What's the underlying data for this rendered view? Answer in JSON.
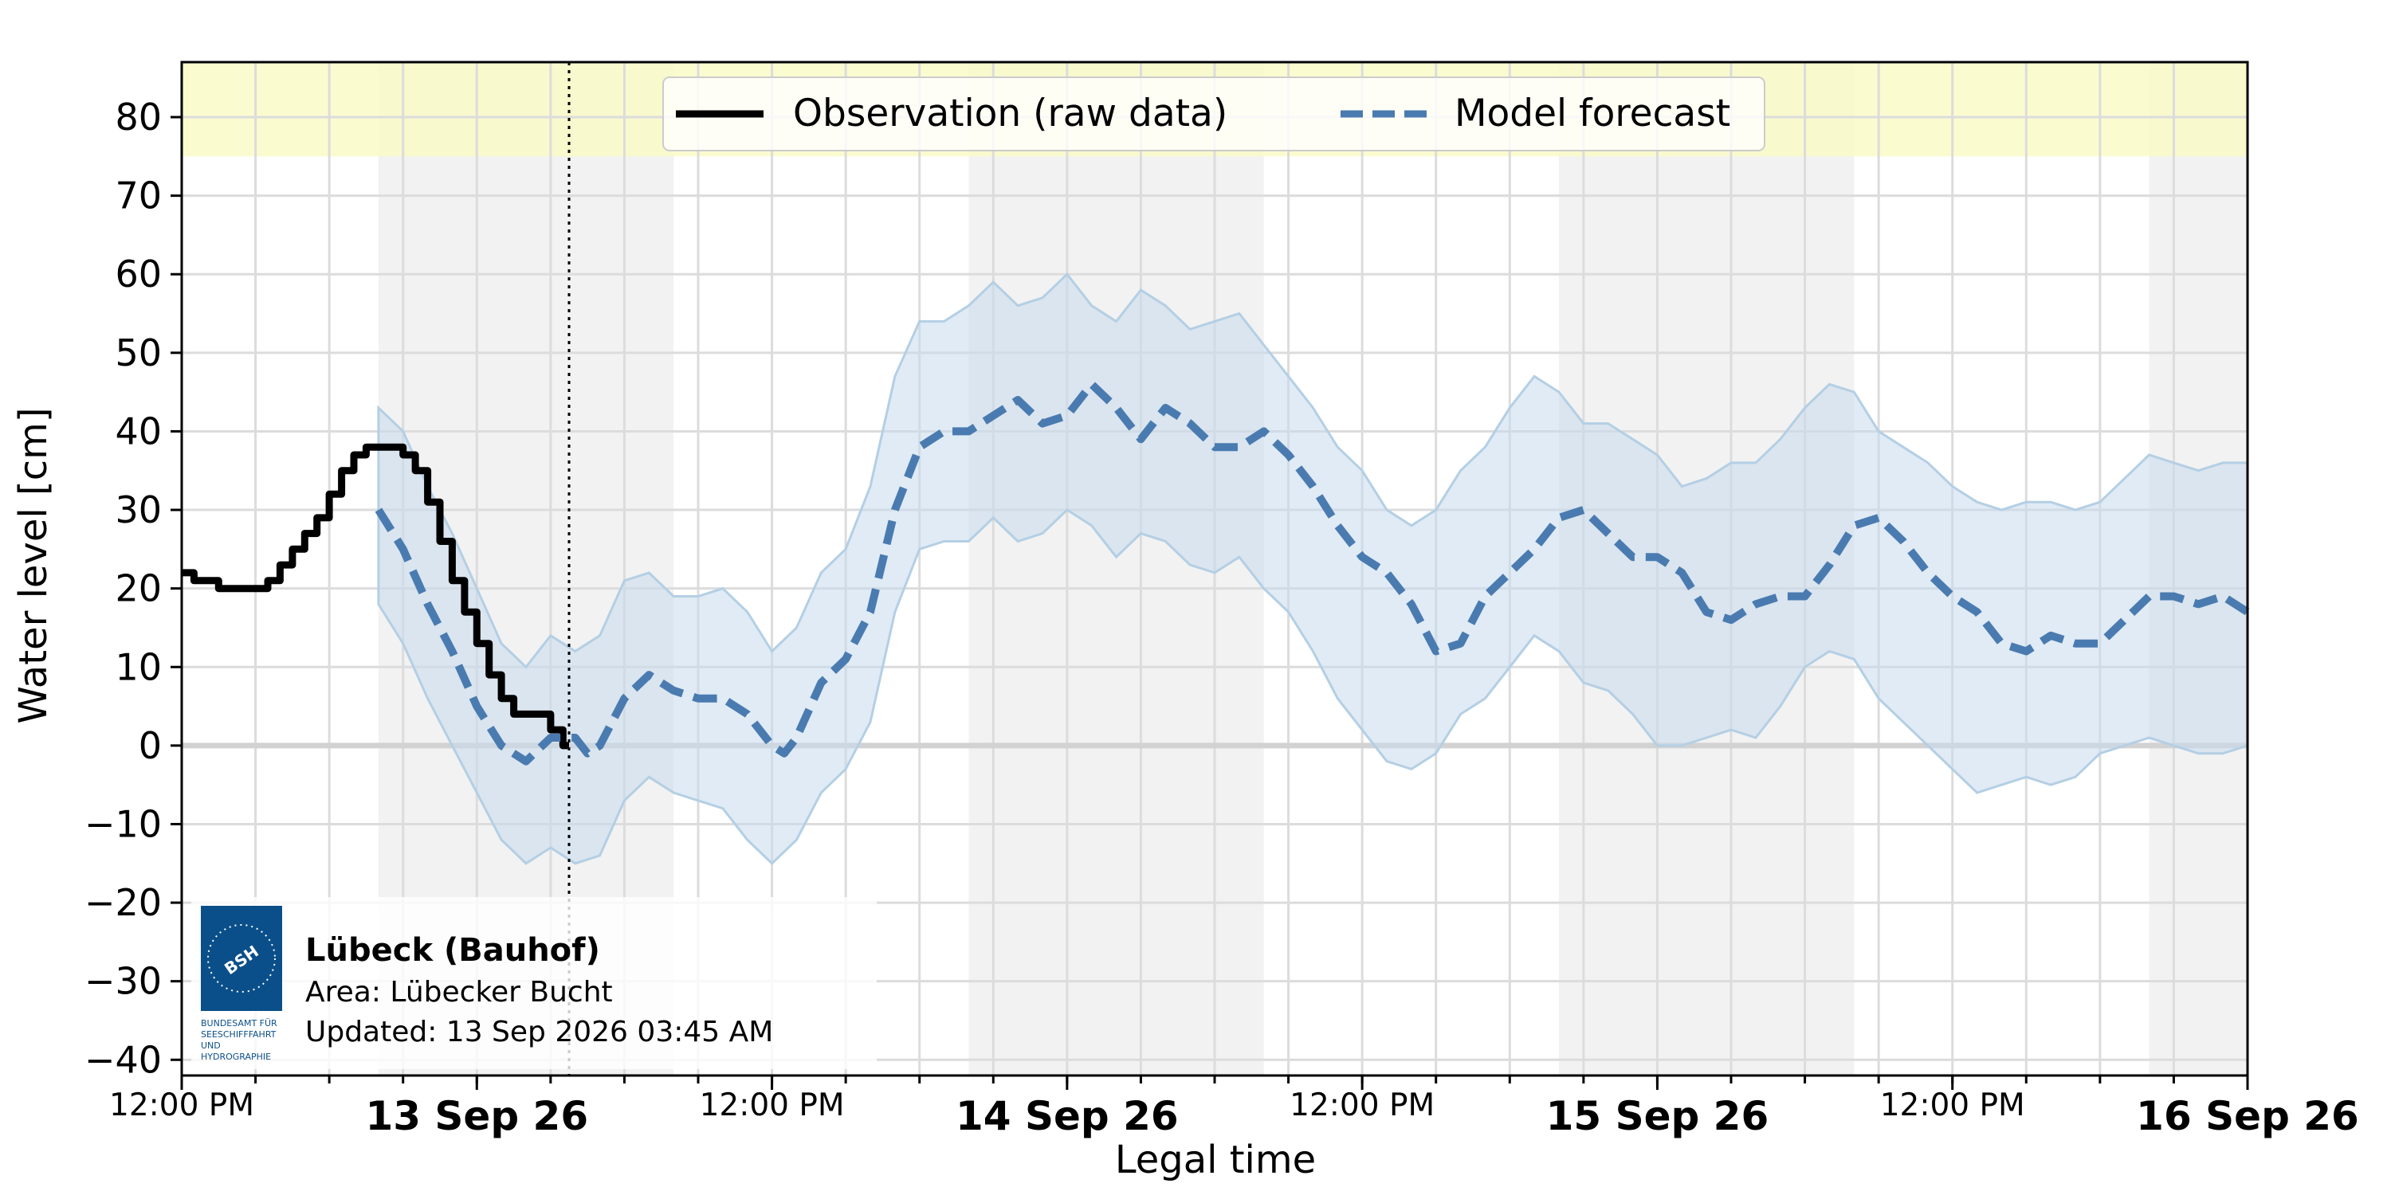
{
  "chart_data": {
    "type": "line",
    "xlabel": "Legal time",
    "ylabel": "Water level [cm]",
    "ylim": [
      -42,
      87
    ],
    "yticks": [
      80,
      70,
      60,
      50,
      40,
      30,
      20,
      10,
      0,
      -10,
      -20,
      -30,
      -40
    ],
    "ytick_labels": [
      "80",
      "70",
      "60",
      "50",
      "40",
      "30",
      "20",
      "10",
      "0",
      "−10",
      "−20",
      "−30",
      "−40"
    ],
    "x_unit": "hours since 12 Sep 2026 12:00 PM",
    "xlim": [
      0,
      84
    ],
    "xticks": [
      {
        "x": 0,
        "label": "12:00 PM",
        "major": false
      },
      {
        "x": 12,
        "label": "13 Sep 26",
        "major": true
      },
      {
        "x": 24,
        "label": "12:00 PM",
        "major": false
      },
      {
        "x": 36,
        "label": "14 Sep 26",
        "major": true
      },
      {
        "x": 48,
        "label": "12:00 PM",
        "major": false
      },
      {
        "x": 60,
        "label": "15 Sep 26",
        "major": true
      },
      {
        "x": 72,
        "label": "12:00 PM",
        "major": false
      },
      {
        "x": 84,
        "label": "16 Sep 26",
        "major": true
      }
    ],
    "night_bands": [
      [
        8,
        20
      ],
      [
        32,
        44
      ],
      [
        56,
        68
      ],
      [
        80,
        84
      ]
    ],
    "warning_band": {
      "from": 75,
      "to": 87,
      "color": "#fafac8"
    },
    "current_time": 15.75,
    "legend": {
      "position": "top-center",
      "entries": [
        {
          "name": "Observation (raw data)",
          "style": "solid",
          "color": "#000000"
        },
        {
          "name": "Model forecast",
          "style": "dashed",
          "color": "#4a7bb0"
        }
      ]
    },
    "series": [
      {
        "name": "Observation (raw data)",
        "color": "#000000",
        "style": "solid-step",
        "points": [
          [
            0,
            22
          ],
          [
            0.5,
            21
          ],
          [
            1,
            21
          ],
          [
            1.5,
            20
          ],
          [
            2.5,
            20
          ],
          [
            3,
            20
          ],
          [
            3.5,
            21
          ],
          [
            4,
            23
          ],
          [
            4.5,
            25
          ],
          [
            5,
            27
          ],
          [
            5.5,
            29
          ],
          [
            6,
            32
          ],
          [
            6.5,
            35
          ],
          [
            7,
            37
          ],
          [
            7.5,
            38
          ],
          [
            8,
            38
          ],
          [
            8.5,
            38
          ],
          [
            9,
            37
          ],
          [
            9.5,
            35
          ],
          [
            10,
            31
          ],
          [
            10.5,
            26
          ],
          [
            11,
            21
          ],
          [
            11.5,
            17
          ],
          [
            12,
            13
          ],
          [
            12.5,
            9
          ],
          [
            13,
            6
          ],
          [
            13.5,
            4
          ],
          [
            14,
            4
          ],
          [
            14.5,
            4
          ],
          [
            15,
            2
          ],
          [
            15.5,
            0
          ],
          [
            15.75,
            0
          ]
        ]
      },
      {
        "name": "Model forecast",
        "color": "#4a7bb0",
        "style": "dashed",
        "points": [
          [
            8,
            30
          ],
          [
            9,
            25
          ],
          [
            10,
            18
          ],
          [
            11,
            12
          ],
          [
            12,
            5
          ],
          [
            13,
            0
          ],
          [
            14,
            -2
          ],
          [
            15,
            1
          ],
          [
            16,
            1
          ],
          [
            16.5,
            -1
          ],
          [
            17,
            0
          ],
          [
            18,
            6
          ],
          [
            19,
            9
          ],
          [
            20,
            7
          ],
          [
            21,
            6
          ],
          [
            22,
            6
          ],
          [
            23,
            4
          ],
          [
            24,
            0
          ],
          [
            24.5,
            -1
          ],
          [
            25,
            1
          ],
          [
            26,
            8
          ],
          [
            27,
            11
          ],
          [
            28,
            17
          ],
          [
            29,
            30
          ],
          [
            30,
            38
          ],
          [
            31,
            40
          ],
          [
            32,
            40
          ],
          [
            33,
            42
          ],
          [
            34,
            44
          ],
          [
            35,
            41
          ],
          [
            36,
            42
          ],
          [
            37,
            46
          ],
          [
            38,
            43
          ],
          [
            39,
            39
          ],
          [
            40,
            43
          ],
          [
            41,
            41
          ],
          [
            42,
            38
          ],
          [
            43,
            38
          ],
          [
            44,
            40
          ],
          [
            45,
            37
          ],
          [
            46,
            33
          ],
          [
            47,
            28
          ],
          [
            48,
            24
          ],
          [
            49,
            22
          ],
          [
            50,
            18
          ],
          [
            51,
            12
          ],
          [
            52,
            13
          ],
          [
            53,
            19
          ],
          [
            54,
            22
          ],
          [
            55,
            25
          ],
          [
            56,
            29
          ],
          [
            57,
            30
          ],
          [
            58,
            27
          ],
          [
            59,
            24
          ],
          [
            60,
            24
          ],
          [
            61,
            22
          ],
          [
            62,
            17
          ],
          [
            63,
            16
          ],
          [
            64,
            18
          ],
          [
            65,
            19
          ],
          [
            66,
            19
          ],
          [
            67,
            23
          ],
          [
            68,
            28
          ],
          [
            69,
            29
          ],
          [
            70,
            26
          ],
          [
            71,
            22
          ],
          [
            72,
            19
          ],
          [
            73,
            17
          ],
          [
            74,
            13
          ],
          [
            75,
            12
          ],
          [
            76,
            14
          ],
          [
            77,
            13
          ],
          [
            78,
            13
          ],
          [
            79,
            16
          ],
          [
            80,
            19
          ],
          [
            81,
            19
          ],
          [
            82,
            18
          ],
          [
            83,
            19
          ],
          [
            84,
            17
          ]
        ]
      }
    ],
    "uncertainty_band": {
      "series": "Model forecast",
      "color": "#c6dbec",
      "upper": [
        [
          8,
          43
        ],
        [
          9,
          40
        ],
        [
          10,
          33
        ],
        [
          11,
          27
        ],
        [
          12,
          20
        ],
        [
          13,
          13
        ],
        [
          14,
          10
        ],
        [
          15,
          14
        ],
        [
          16,
          12
        ],
        [
          17,
          14
        ],
        [
          18,
          21
        ],
        [
          19,
          22
        ],
        [
          20,
          19
        ],
        [
          21,
          19
        ],
        [
          22,
          20
        ],
        [
          23,
          17
        ],
        [
          24,
          12
        ],
        [
          25,
          15
        ],
        [
          26,
          22
        ],
        [
          27,
          25
        ],
        [
          28,
          33
        ],
        [
          29,
          47
        ],
        [
          30,
          54
        ],
        [
          31,
          54
        ],
        [
          32,
          56
        ],
        [
          33,
          59
        ],
        [
          34,
          56
        ],
        [
          35,
          57
        ],
        [
          36,
          60
        ],
        [
          37,
          56
        ],
        [
          38,
          54
        ],
        [
          39,
          58
        ],
        [
          40,
          56
        ],
        [
          41,
          53
        ],
        [
          42,
          54
        ],
        [
          43,
          55
        ],
        [
          44,
          51
        ],
        [
          45,
          47
        ],
        [
          46,
          43
        ],
        [
          47,
          38
        ],
        [
          48,
          35
        ],
        [
          49,
          30
        ],
        [
          50,
          28
        ],
        [
          51,
          30
        ],
        [
          52,
          35
        ],
        [
          53,
          38
        ],
        [
          54,
          43
        ],
        [
          55,
          47
        ],
        [
          56,
          45
        ],
        [
          57,
          41
        ],
        [
          58,
          41
        ],
        [
          59,
          39
        ],
        [
          60,
          37
        ],
        [
          61,
          33
        ],
        [
          62,
          34
        ],
        [
          63,
          36
        ],
        [
          64,
          36
        ],
        [
          65,
          39
        ],
        [
          66,
          43
        ],
        [
          67,
          46
        ],
        [
          68,
          45
        ],
        [
          69,
          40
        ],
        [
          70,
          38
        ],
        [
          71,
          36
        ],
        [
          72,
          33
        ],
        [
          73,
          31
        ],
        [
          74,
          30
        ],
        [
          75,
          31
        ],
        [
          76,
          31
        ],
        [
          77,
          30
        ],
        [
          78,
          31
        ],
        [
          79,
          34
        ],
        [
          80,
          37
        ],
        [
          81,
          36
        ],
        [
          82,
          35
        ],
        [
          83,
          36
        ],
        [
          84,
          36
        ]
      ],
      "lower": [
        [
          8,
          18
        ],
        [
          9,
          13
        ],
        [
          10,
          6
        ],
        [
          11,
          0
        ],
        [
          12,
          -6
        ],
        [
          13,
          -12
        ],
        [
          14,
          -15
        ],
        [
          15,
          -13
        ],
        [
          16,
          -15
        ],
        [
          17,
          -14
        ],
        [
          18,
          -7
        ],
        [
          19,
          -4
        ],
        [
          20,
          -6
        ],
        [
          21,
          -7
        ],
        [
          22,
          -8
        ],
        [
          23,
          -12
        ],
        [
          24,
          -15
        ],
        [
          25,
          -12
        ],
        [
          26,
          -6
        ],
        [
          27,
          -3
        ],
        [
          28,
          3
        ],
        [
          29,
          17
        ],
        [
          30,
          25
        ],
        [
          31,
          26
        ],
        [
          32,
          26
        ],
        [
          33,
          29
        ],
        [
          34,
          26
        ],
        [
          35,
          27
        ],
        [
          36,
          30
        ],
        [
          37,
          28
        ],
        [
          38,
          24
        ],
        [
          39,
          27
        ],
        [
          40,
          26
        ],
        [
          41,
          23
        ],
        [
          42,
          22
        ],
        [
          43,
          24
        ],
        [
          44,
          20
        ],
        [
          45,
          17
        ],
        [
          46,
          12
        ],
        [
          47,
          6
        ],
        [
          48,
          2
        ],
        [
          49,
          -2
        ],
        [
          50,
          -3
        ],
        [
          51,
          -1
        ],
        [
          52,
          4
        ],
        [
          53,
          6
        ],
        [
          54,
          10
        ],
        [
          55,
          14
        ],
        [
          56,
          12
        ],
        [
          57,
          8
        ],
        [
          58,
          7
        ],
        [
          59,
          4
        ],
        [
          60,
          0
        ],
        [
          61,
          0
        ],
        [
          62,
          1
        ],
        [
          63,
          2
        ],
        [
          64,
          1
        ],
        [
          65,
          5
        ],
        [
          66,
          10
        ],
        [
          67,
          12
        ],
        [
          68,
          11
        ],
        [
          69,
          6
        ],
        [
          70,
          3
        ],
        [
          71,
          0
        ],
        [
          72,
          -3
        ],
        [
          73,
          -6
        ],
        [
          74,
          -5
        ],
        [
          75,
          -4
        ],
        [
          76,
          -5
        ],
        [
          77,
          -4
        ],
        [
          78,
          -1
        ],
        [
          79,
          0
        ],
        [
          80,
          1
        ],
        [
          81,
          0
        ],
        [
          82,
          -1
        ],
        [
          83,
          -1
        ],
        [
          84,
          0
        ]
      ]
    }
  },
  "info_box": {
    "logo_text": "BSH",
    "logo_caption": [
      "BUNDESAMT FÜR",
      "SEESCHIFFFAHRT",
      "UND",
      "HYDROGRAPHIE"
    ],
    "station": "Lübeck (Bauhof)",
    "area": "Area: Lübecker Bucht",
    "updated": "Updated: 13 Sep 2026 03:45 AM"
  }
}
